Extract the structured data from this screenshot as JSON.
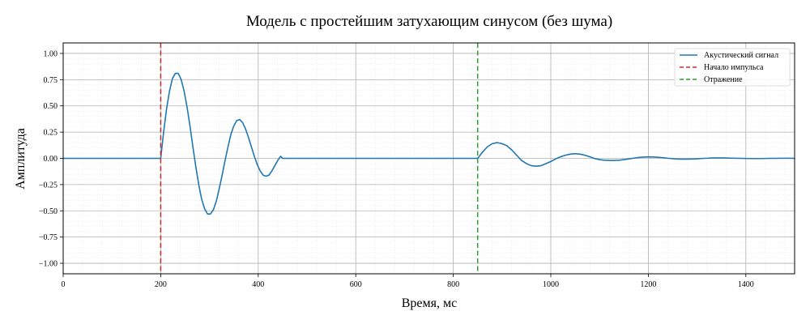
{
  "chart_data": {
    "type": "line",
    "title": "Модель с простейшим затухающим синусом (без шума)",
    "xlabel": "Время, мс",
    "ylabel": "Амплитуда",
    "xlim": [
      0,
      1500
    ],
    "ylim": [
      -1.1,
      1.1
    ],
    "x_ticks": [
      0,
      200,
      400,
      600,
      800,
      1000,
      1200,
      1400
    ],
    "y_ticks": [
      -1.0,
      -0.75,
      -0.5,
      -0.25,
      0.0,
      0.25,
      0.5,
      0.75,
      1.0
    ],
    "x_tick_labels": [
      "0",
      "200",
      "400",
      "600",
      "800",
      "1000",
      "1200",
      "1400"
    ],
    "y_tick_labels": [
      "−1.00",
      "−0.75",
      "−0.50",
      "−0.25",
      "0.00",
      "0.25",
      "0.50",
      "0.75",
      "1.00"
    ],
    "grid": true,
    "minor_grid": true,
    "legend_position": "top-right",
    "series": [
      {
        "name": "Акустический сигнал",
        "style": "solid",
        "color": "#1f77b4",
        "x": [
          0,
          200,
          206,
          212,
          218,
          224,
          230,
          236,
          242,
          248,
          254,
          260,
          266,
          272,
          278,
          284,
          290,
          296,
          302,
          308,
          314,
          320,
          326,
          332,
          338,
          344,
          350,
          356,
          362,
          368,
          374,
          380,
          386,
          392,
          398,
          404,
          410,
          416,
          422,
          428,
          434,
          440,
          446,
          450,
          850,
          860,
          870,
          880,
          890,
          900,
          910,
          920,
          930,
          940,
          950,
          960,
          970,
          980,
          990,
          1000,
          1010,
          1020,
          1030,
          1040,
          1050,
          1060,
          1070,
          1080,
          1090,
          1100,
          1110,
          1120,
          1130,
          1140,
          1150,
          1160,
          1170,
          1180,
          1190,
          1200,
          1210,
          1220,
          1230,
          1240,
          1250,
          1260,
          1270,
          1280,
          1290,
          1300,
          1310,
          1320,
          1330,
          1340,
          1350,
          1360,
          1370,
          1380,
          1390,
          1400,
          1410,
          1420,
          1430,
          1440,
          1450,
          1460,
          1470,
          1480,
          1490,
          1500
        ],
        "y": [
          0,
          0,
          0.25,
          0.47,
          0.64,
          0.76,
          0.81,
          0.81,
          0.75,
          0.64,
          0.49,
          0.31,
          0.11,
          -0.08,
          -0.25,
          -0.39,
          -0.48,
          -0.53,
          -0.53,
          -0.49,
          -0.41,
          -0.29,
          -0.16,
          -0.02,
          0.11,
          0.23,
          0.31,
          0.36,
          0.37,
          0.34,
          0.28,
          0.2,
          0.11,
          0.02,
          -0.06,
          -0.12,
          -0.16,
          -0.17,
          -0.16,
          -0.12,
          -0.07,
          -0.02,
          0.02,
          0,
          0,
          0.06,
          0.11,
          0.14,
          0.15,
          0.14,
          0.12,
          0.08,
          0.03,
          -0.02,
          -0.05,
          -0.07,
          -0.075,
          -0.07,
          -0.05,
          -0.03,
          -0.005,
          0.015,
          0.03,
          0.04,
          0.045,
          0.04,
          0.03,
          0.015,
          -0.002,
          -0.012,
          -0.018,
          -0.02,
          -0.02,
          -0.018,
          -0.012,
          -0.005,
          0.002,
          0.008,
          0.012,
          0.014,
          0.013,
          0.01,
          0.006,
          0.001,
          -0.003,
          -0.006,
          -0.007,
          -0.007,
          -0.006,
          -0.004,
          -0.001,
          0.001,
          0.003,
          0.004,
          0.004,
          0.003,
          0.002,
          0.001,
          0,
          -0.001,
          -0.002,
          -0.002,
          -0.002,
          -0.001,
          0,
          0,
          0.001,
          0.001,
          0.001,
          0
        ]
      },
      {
        "name": "Начало импульса",
        "style": "dashed",
        "color": "#d62728",
        "vline_x": 200
      },
      {
        "name": "Отражение",
        "style": "dashed",
        "color": "#2ca02c",
        "vline_x": 850
      }
    ]
  }
}
